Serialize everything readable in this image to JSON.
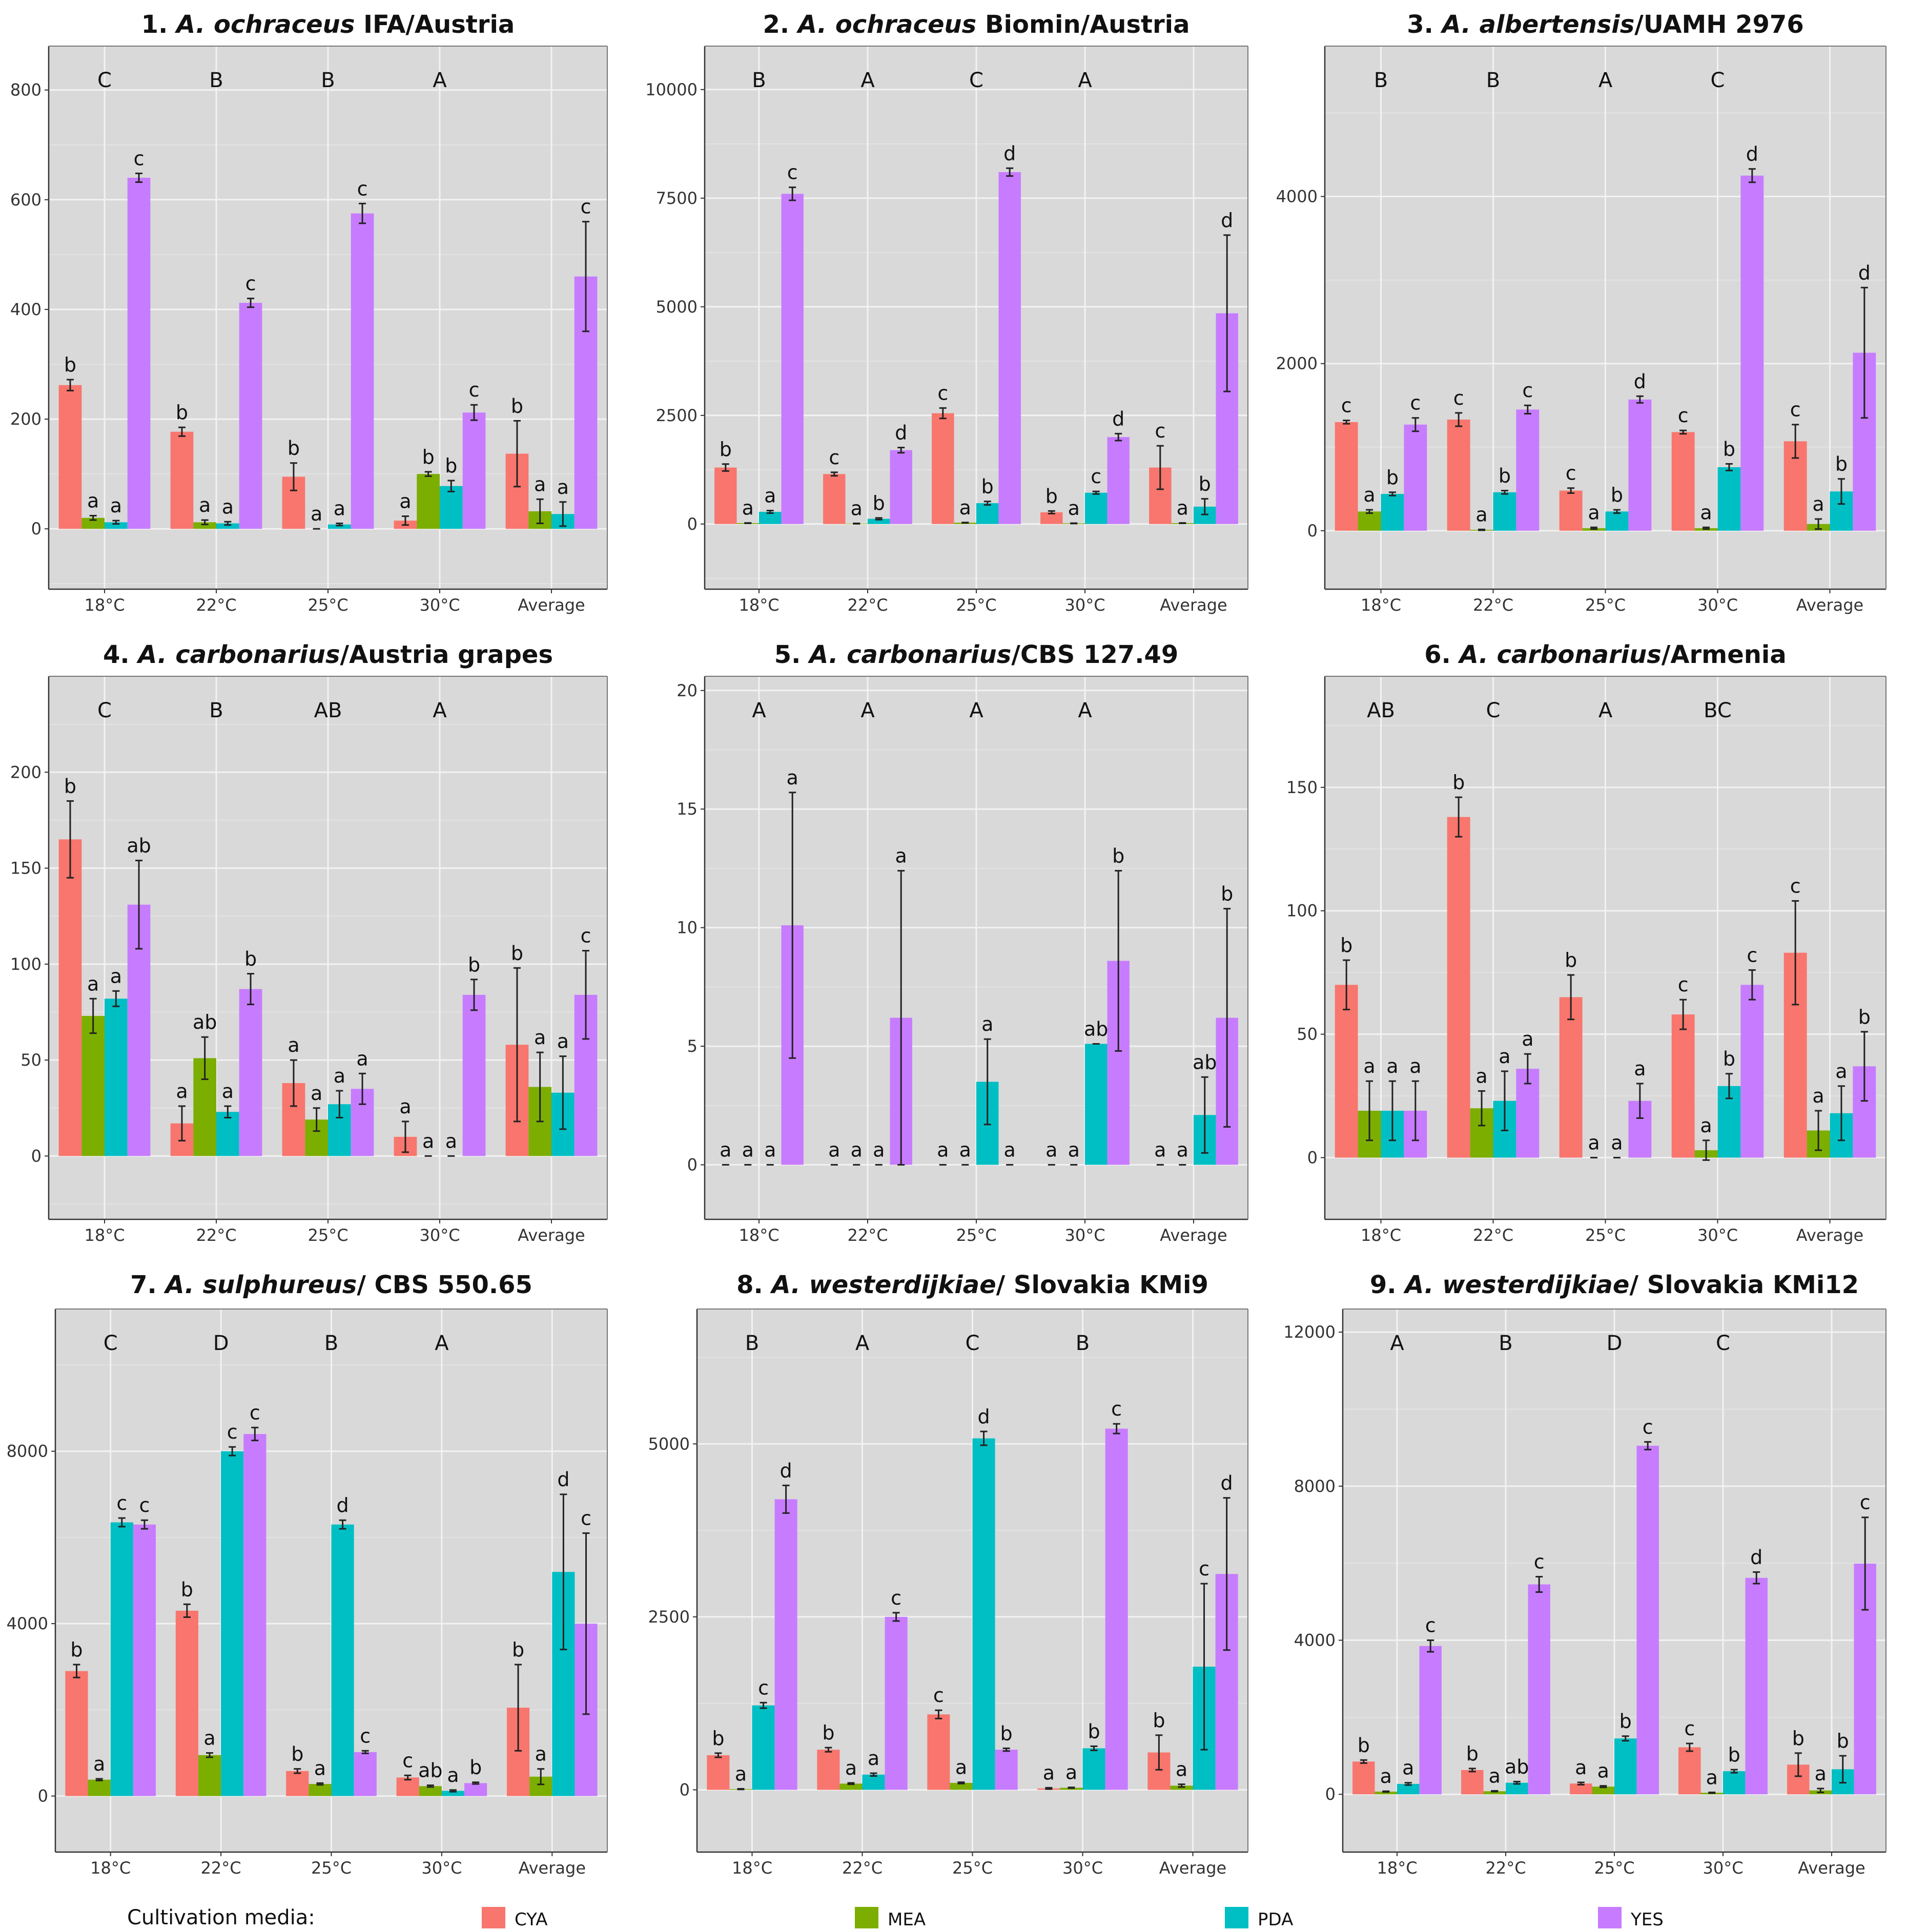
{
  "media_colors": {
    "CYA": "#f8766d",
    "MEA": "#7cae00",
    "PDA": "#00bfc4",
    "YES": "#c77cff"
  },
  "legend": {
    "title": "Cultivation media:",
    "items": [
      "CYA",
      "MEA",
      "PDA",
      "YES"
    ]
  },
  "chart_data": [
    {
      "type": "bar",
      "title_num": "1.",
      "title_species": "A. ochraceus",
      "title_rest": "IFA/Austria",
      "ylim": [
        -110,
        880
      ],
      "yticks": [
        0,
        200,
        400,
        600,
        800
      ],
      "categories": [
        "18°C",
        "22°C",
        "25°C",
        "30°C",
        "Average"
      ],
      "group_letters": [
        "C",
        "B",
        "B",
        "A"
      ],
      "series": [
        {
          "name": "CYA",
          "values": [
            262,
            177,
            95,
            15,
            137
          ],
          "errors": [
            10,
            8,
            25,
            8,
            60
          ],
          "letters": [
            "b",
            "b",
            "b",
            "a",
            "b"
          ]
        },
        {
          "name": "MEA",
          "values": [
            20,
            12,
            0,
            100,
            32
          ],
          "errors": [
            4,
            4,
            0,
            4,
            22
          ],
          "letters": [
            "a",
            "a",
            "a",
            "b",
            "a"
          ]
        },
        {
          "name": "PDA",
          "values": [
            12,
            10,
            8,
            78,
            27
          ],
          "errors": [
            3,
            3,
            2,
            10,
            22
          ],
          "letters": [
            "a",
            "a",
            "a",
            "b",
            "a"
          ]
        },
        {
          "name": "YES",
          "values": [
            640,
            412,
            575,
            212,
            460
          ],
          "errors": [
            8,
            8,
            18,
            14,
            100
          ],
          "letters": [
            "c",
            "c",
            "c",
            "c",
            "c"
          ]
        }
      ]
    },
    {
      "type": "bar",
      "title_num": "2.",
      "title_species": "A. ochraceus",
      "title_rest": "Biomin/Austria",
      "ylim": [
        -1500,
        11000
      ],
      "yticks": [
        0,
        2500,
        5000,
        7500,
        10000
      ],
      "categories": [
        "18°C",
        "22°C",
        "25°C",
        "30°C",
        "Average"
      ],
      "group_letters": [
        "B",
        "A",
        "C",
        "A"
      ],
      "series": [
        {
          "name": "CYA",
          "values": [
            1300,
            1150,
            2550,
            270,
            1300
          ],
          "errors": [
            80,
            40,
            120,
            30,
            500
          ],
          "letters": [
            "b",
            "c",
            "c",
            "b",
            "c"
          ]
        },
        {
          "name": "MEA",
          "values": [
            20,
            10,
            30,
            15,
            20
          ],
          "errors": [
            5,
            5,
            5,
            5,
            5
          ],
          "letters": [
            "a",
            "a",
            "a",
            "a",
            "a"
          ]
        },
        {
          "name": "PDA",
          "values": [
            280,
            120,
            480,
            720,
            400
          ],
          "errors": [
            30,
            20,
            40,
            30,
            180
          ],
          "letters": [
            "a",
            "b",
            "b",
            "c",
            "b"
          ]
        },
        {
          "name": "YES",
          "values": [
            7600,
            1700,
            8100,
            2000,
            4850
          ],
          "errors": [
            150,
            60,
            90,
            80,
            1800
          ],
          "letters": [
            "c",
            "d",
            "d",
            "d",
            "d"
          ]
        }
      ]
    },
    {
      "type": "bar",
      "title_num": "3.",
      "title_species": "A. albertensis",
      "title_rest": "/UAMH 2976",
      "ylim": [
        -700,
        5800
      ],
      "yticks": [
        0,
        2000,
        4000
      ],
      "categories": [
        "18°C",
        "22°C",
        "25°C",
        "30°C",
        "Average"
      ],
      "group_letters": [
        "B",
        "B",
        "A",
        "C"
      ],
      "series": [
        {
          "name": "CYA",
          "values": [
            1300,
            1330,
            480,
            1180,
            1070
          ],
          "errors": [
            20,
            80,
            30,
            20,
            200
          ],
          "letters": [
            "c",
            "c",
            "c",
            "c",
            "c"
          ]
        },
        {
          "name": "MEA",
          "values": [
            230,
            10,
            30,
            30,
            80
          ],
          "errors": [
            20,
            5,
            10,
            10,
            60
          ],
          "letters": [
            "a",
            "a",
            "a",
            "a",
            "a"
          ]
        },
        {
          "name": "PDA",
          "values": [
            440,
            460,
            230,
            760,
            470
          ],
          "errors": [
            20,
            20,
            20,
            40,
            150
          ],
          "letters": [
            "b",
            "b",
            "b",
            "b",
            "b"
          ]
        },
        {
          "name": "YES",
          "values": [
            1270,
            1450,
            1570,
            4250,
            2130
          ],
          "errors": [
            80,
            50,
            40,
            80,
            780
          ],
          "letters": [
            "c",
            "c",
            "d",
            "d",
            "d"
          ]
        }
      ]
    },
    {
      "type": "bar",
      "title_num": "4.",
      "title_species": "A. carbonarius",
      "title_rest": "/Austria grapes",
      "ylim": [
        -33,
        250
      ],
      "yticks": [
        0,
        50,
        100,
        150,
        200
      ],
      "categories": [
        "18°C",
        "22°C",
        "25°C",
        "30°C",
        "Average"
      ],
      "group_letters": [
        "C",
        "B",
        "AB",
        "A"
      ],
      "series": [
        {
          "name": "CYA",
          "values": [
            165,
            17,
            38,
            10,
            58
          ],
          "errors": [
            20,
            9,
            12,
            8,
            40
          ],
          "letters": [
            "b",
            "a",
            "a",
            "a",
            "b"
          ]
        },
        {
          "name": "MEA",
          "values": [
            73,
            51,
            19,
            0,
            36
          ],
          "errors": [
            9,
            11,
            6,
            0,
            18
          ],
          "letters": [
            "a",
            "ab",
            "a",
            "a",
            "a"
          ]
        },
        {
          "name": "PDA",
          "values": [
            82,
            23,
            27,
            0,
            33
          ],
          "errors": [
            4,
            3,
            7,
            0,
            19
          ],
          "letters": [
            "a",
            "a",
            "a",
            "a",
            "a"
          ]
        },
        {
          "name": "YES",
          "values": [
            131,
            87,
            35,
            84,
            84
          ],
          "errors": [
            23,
            8,
            8,
            8,
            23
          ],
          "letters": [
            "ab",
            "b",
            "a",
            "b",
            "c"
          ]
        }
      ]
    },
    {
      "type": "bar",
      "title_num": "5.",
      "title_species": "A. carbonarius",
      "title_rest": "/CBS 127.49",
      "ylim": [
        -2.3,
        20.6
      ],
      "yticks": [
        0,
        5,
        10,
        15,
        20
      ],
      "categories": [
        "18°C",
        "22°C",
        "25°C",
        "30°C",
        "Average"
      ],
      "group_letters": [
        "A",
        "A",
        "A",
        "A"
      ],
      "series": [
        {
          "name": "CYA",
          "values": [
            0,
            0,
            0,
            0,
            0
          ],
          "errors": [
            0,
            0,
            0,
            0,
            0
          ],
          "letters": [
            "a",
            "a",
            "a",
            "a",
            "a"
          ]
        },
        {
          "name": "MEA",
          "values": [
            0,
            0,
            0,
            0,
            0
          ],
          "errors": [
            0,
            0,
            0,
            0,
            0
          ],
          "letters": [
            "a",
            "a",
            "a",
            "a",
            "a"
          ]
        },
        {
          "name": "PDA",
          "values": [
            0,
            0,
            3.5,
            5.1,
            2.1
          ],
          "errors": [
            0,
            0,
            1.8,
            0,
            1.6
          ],
          "letters": [
            "a",
            "a",
            "a",
            "ab",
            "ab"
          ]
        },
        {
          "name": "YES",
          "values": [
            10.1,
            6.2,
            0,
            8.6,
            6.2
          ],
          "errors": [
            5.6,
            6.2,
            0,
            3.8,
            4.6
          ],
          "letters": [
            "a",
            "a",
            "a",
            "b",
            "b"
          ]
        }
      ]
    },
    {
      "type": "bar",
      "title_num": "6.",
      "title_species": "A. carbonarius",
      "title_rest": "/Armenia",
      "ylim": [
        -25,
        195
      ],
      "yticks": [
        0,
        50,
        100,
        150
      ],
      "categories": [
        "18°C",
        "22°C",
        "25°C",
        "30°C",
        "Average"
      ],
      "group_letters": [
        "AB",
        "C",
        "A",
        "BC"
      ],
      "series": [
        {
          "name": "CYA",
          "values": [
            70,
            138,
            65,
            58,
            83
          ],
          "errors": [
            10,
            8,
            9,
            6,
            21
          ],
          "letters": [
            "b",
            "b",
            "b",
            "c",
            "c"
          ]
        },
        {
          "name": "MEA",
          "values": [
            19,
            20,
            0,
            3,
            11
          ],
          "errors": [
            12,
            7,
            0,
            4,
            8
          ],
          "letters": [
            "a",
            "a",
            "a",
            "a",
            "a"
          ]
        },
        {
          "name": "PDA",
          "values": [
            19,
            23,
            0,
            29,
            18
          ],
          "errors": [
            12,
            12,
            0,
            5,
            11
          ],
          "letters": [
            "a",
            "a",
            "a",
            "b",
            "a"
          ]
        },
        {
          "name": "YES",
          "values": [
            19,
            36,
            23,
            70,
            37
          ],
          "errors": [
            12,
            6,
            7,
            6,
            14
          ],
          "letters": [
            "a",
            "a",
            "a",
            "c",
            "b"
          ]
        }
      ]
    },
    {
      "type": "bar",
      "title_num": "7.",
      "title_species": "A. sulphureus",
      "title_rest": "/ CBS 550.65",
      "ylim": [
        -1300,
        11300
      ],
      "yticks": [
        0,
        4000,
        8000
      ],
      "categories": [
        "18°C",
        "22°C",
        "25°C",
        "30°C",
        "Average"
      ],
      "group_letters": [
        "C",
        "D",
        "B",
        "A"
      ],
      "series": [
        {
          "name": "CYA",
          "values": [
            2900,
            4300,
            580,
            430,
            2050
          ],
          "errors": [
            150,
            150,
            50,
            50,
            1000
          ],
          "letters": [
            "b",
            "b",
            "b",
            "c",
            "b"
          ]
        },
        {
          "name": "MEA",
          "values": [
            380,
            950,
            280,
            230,
            450
          ],
          "errors": [
            20,
            50,
            20,
            20,
            180
          ],
          "letters": [
            "a",
            "a",
            "a",
            "ab",
            "a"
          ]
        },
        {
          "name": "PDA",
          "values": [
            6350,
            8000,
            6300,
            120,
            5200
          ],
          "errors": [
            100,
            100,
            100,
            20,
            1800
          ],
          "letters": [
            "c",
            "c",
            "d",
            "a",
            "d"
          ]
        },
        {
          "name": "YES",
          "values": [
            6300,
            8400,
            1020,
            300,
            4000
          ],
          "errors": [
            100,
            150,
            30,
            20,
            2100
          ],
          "letters": [
            "c",
            "c",
            "c",
            "b",
            "c"
          ]
        }
      ]
    },
    {
      "type": "bar",
      "title_num": "8.",
      "title_species": "A. westerdijkiae",
      "title_rest": "/ Slovakia KMi9",
      "ylim": [
        -900,
        6950
      ],
      "yticks": [
        0,
        2500,
        5000
      ],
      "categories": [
        "18°C",
        "22°C",
        "25°C",
        "30°C",
        "Average"
      ],
      "group_letters": [
        "B",
        "A",
        "C",
        "B"
      ],
      "series": [
        {
          "name": "CYA",
          "values": [
            500,
            580,
            1090,
            20,
            540
          ],
          "errors": [
            30,
            30,
            60,
            10,
            250
          ],
          "letters": [
            "b",
            "b",
            "c",
            "a",
            "b"
          ]
        },
        {
          "name": "MEA",
          "values": [
            10,
            90,
            100,
            30,
            60
          ],
          "errors": [
            5,
            10,
            10,
            5,
            20
          ],
          "letters": [
            "a",
            "a",
            "a",
            "a",
            "a"
          ]
        },
        {
          "name": "PDA",
          "values": [
            1220,
            220,
            5080,
            600,
            1780
          ],
          "errors": [
            40,
            20,
            100,
            30,
            1200
          ],
          "letters": [
            "c",
            "a",
            "d",
            "b",
            "c"
          ]
        },
        {
          "name": "YES",
          "values": [
            4200,
            2500,
            580,
            5220,
            3120
          ],
          "errors": [
            200,
            60,
            20,
            70,
            1100
          ],
          "letters": [
            "d",
            "c",
            "b",
            "c",
            "d"
          ]
        }
      ]
    },
    {
      "type": "bar",
      "title_num": "9.",
      "title_species": "A. westerdijkiae",
      "title_rest": "/ Slovakia KMi12",
      "ylim": [
        -1500,
        12600
      ],
      "yticks": [
        0,
        4000,
        8000,
        12000
      ],
      "categories": [
        "18°C",
        "22°C",
        "25°C",
        "30°C",
        "Average"
      ],
      "group_letters": [
        "A",
        "B",
        "D",
        "C"
      ],
      "series": [
        {
          "name": "CYA",
          "values": [
            850,
            630,
            280,
            1220,
            770
          ],
          "errors": [
            40,
            40,
            30,
            100,
            300
          ],
          "letters": [
            "b",
            "b",
            "a",
            "c",
            "b"
          ]
        },
        {
          "name": "MEA",
          "values": [
            70,
            80,
            200,
            40,
            100
          ],
          "errors": [
            10,
            10,
            20,
            10,
            50
          ],
          "letters": [
            "a",
            "a",
            "a",
            "a",
            "a"
          ]
        },
        {
          "name": "PDA",
          "values": [
            270,
            300,
            1450,
            600,
            650
          ],
          "errors": [
            30,
            30,
            60,
            40,
            350
          ],
          "letters": [
            "a",
            "ab",
            "b",
            "b",
            "b"
          ]
        },
        {
          "name": "YES",
          "values": [
            3850,
            5450,
            9050,
            5620,
            5990
          ],
          "errors": [
            150,
            200,
            100,
            150,
            1200
          ],
          "letters": [
            "c",
            "c",
            "c",
            "d",
            "c"
          ]
        }
      ]
    }
  ]
}
